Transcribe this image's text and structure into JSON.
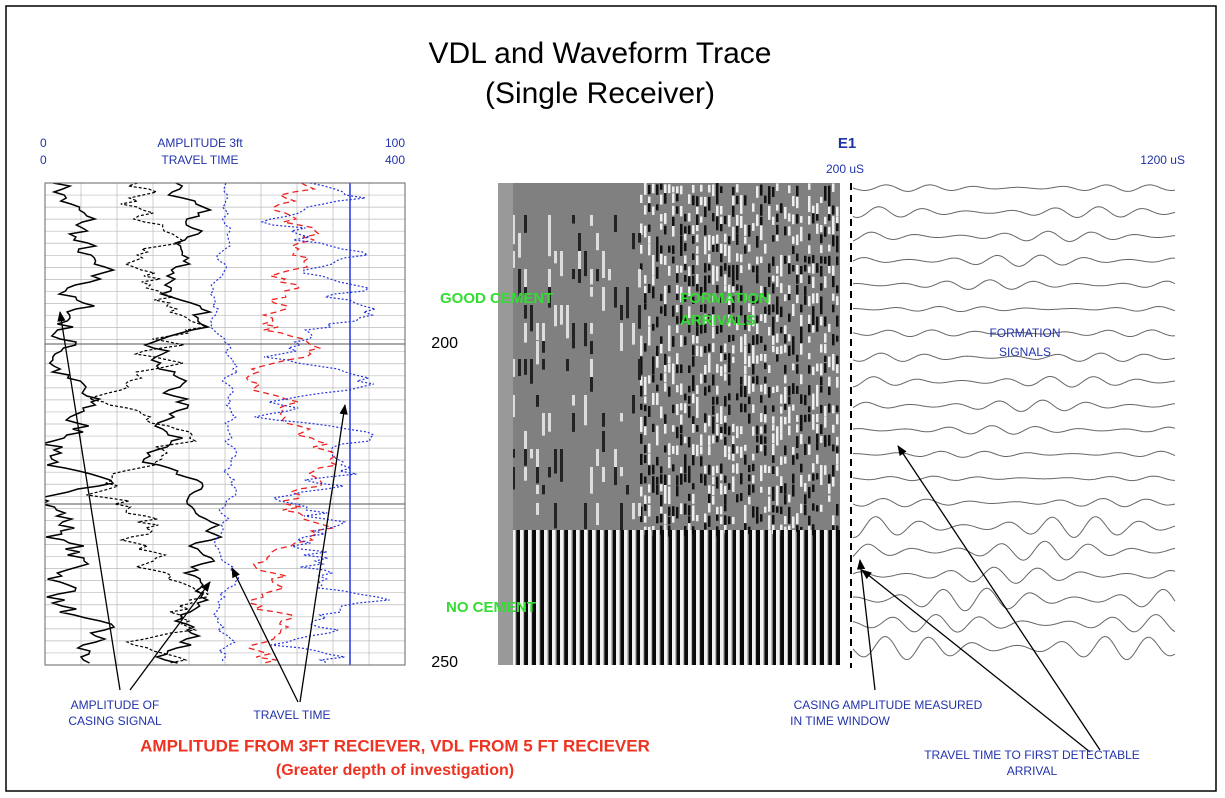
{
  "title": [
    "VDL and Waveform Trace",
    "(Single Receiver)"
  ],
  "left_track": {
    "header": [
      [
        "0",
        "AMPLITUDE 3ft",
        "100"
      ],
      [
        "0",
        "TRAVEL TIME",
        "400"
      ]
    ]
  },
  "vdl": {
    "label": "E1",
    "scale_start": "200 uS",
    "scale_end": "1200 uS",
    "depths": [
      "200",
      "250"
    ]
  },
  "zones": {
    "good_cement": "GOOD CEMENT",
    "formation_arrivals": [
      "FORMATION",
      "ARRIVALS"
    ],
    "no_cement": "NO CEMENT",
    "formation_signals": [
      "FORMATION",
      "SIGNALS"
    ]
  },
  "annotations": {
    "amplitude_of_casing_signal": [
      "AMPLITUDE OF",
      "CASING SIGNAL"
    ],
    "travel_time": "TRAVEL TIME",
    "casing_amplitude": [
      "CASING AMPLITUDE MEASURED",
      "IN TIME WINDOW"
    ],
    "travel_time_first": [
      "TRAVEL TIME TO FIRST DETECTABLE",
      "ARRIVAL"
    ]
  },
  "footer": [
    "AMPLITUDE FROM 3FT RECIEVER, VDL FROM 5 FT RECIEVER",
    "(Greater depth of investigation)"
  ]
}
